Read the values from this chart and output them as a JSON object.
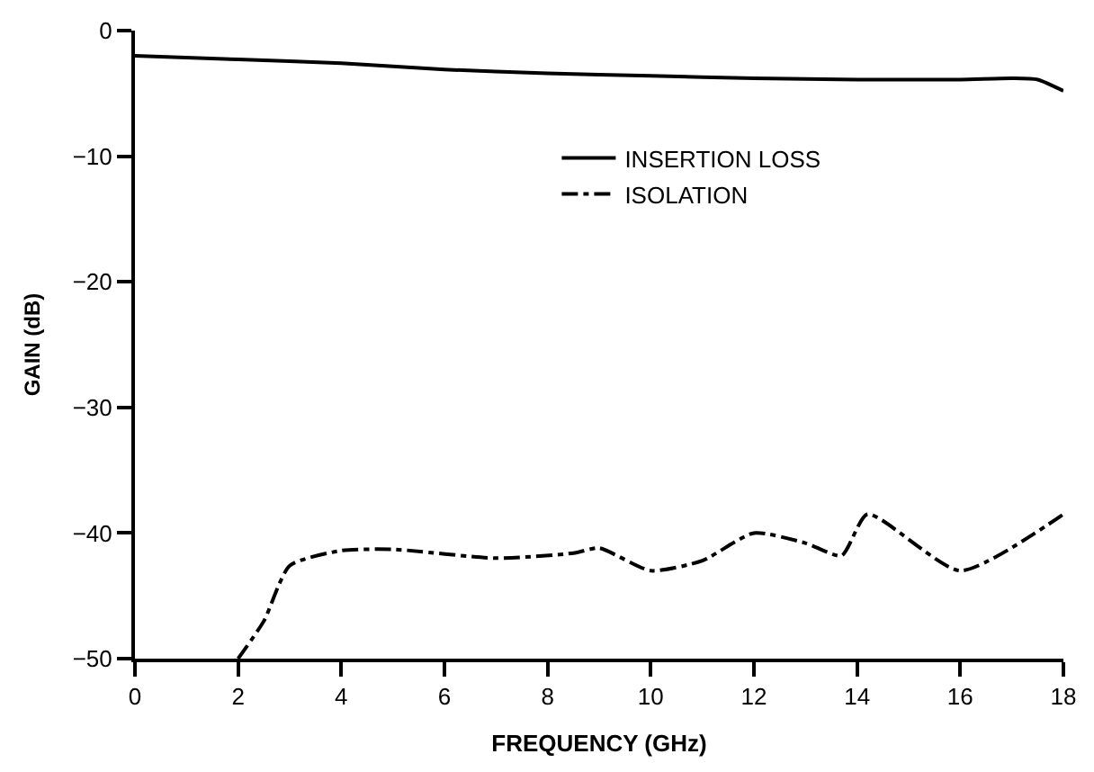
{
  "chart_data": {
    "type": "line",
    "xlabel": "FREQUENCY (GHz)",
    "ylabel": "GAIN (dB)",
    "xlim": [
      0,
      18
    ],
    "xticks": [
      0,
      2,
      4,
      6,
      8,
      10,
      12,
      14,
      16,
      18
    ],
    "ylim": [
      -50,
      0
    ],
    "yticks": [
      -50,
      -40,
      -30,
      -20,
      -10,
      0
    ],
    "legend": "top right",
    "marker": "none",
    "series": [
      {
        "name": "INSERTION LOSS",
        "color": "#000000",
        "line_style": "solid",
        "x": [
          0,
          2,
          4,
          6,
          8,
          10,
          12,
          14,
          16,
          17,
          17.5,
          18
        ],
        "values": [
          -2.0,
          -2.3,
          -2.6,
          -3.1,
          -3.4,
          -3.6,
          -3.8,
          -3.9,
          -3.9,
          -3.8,
          -3.9,
          -4.8
        ]
      },
      {
        "name": "ISOLATION",
        "color": "#000000",
        "line_style": "dashdot",
        "x": [
          2,
          2.5,
          3,
          4,
          5,
          7,
          8.5,
          9,
          10,
          11,
          12,
          13,
          13.7,
          14.2,
          16,
          18
        ],
        "values": [
          -50,
          -47,
          -42.6,
          -41.4,
          -41.3,
          -42,
          -41.6,
          -41.2,
          -43.0,
          -42.2,
          -40.0,
          -40.8,
          -41.8,
          -38.5,
          -43.0,
          -38.5
        ]
      }
    ]
  }
}
